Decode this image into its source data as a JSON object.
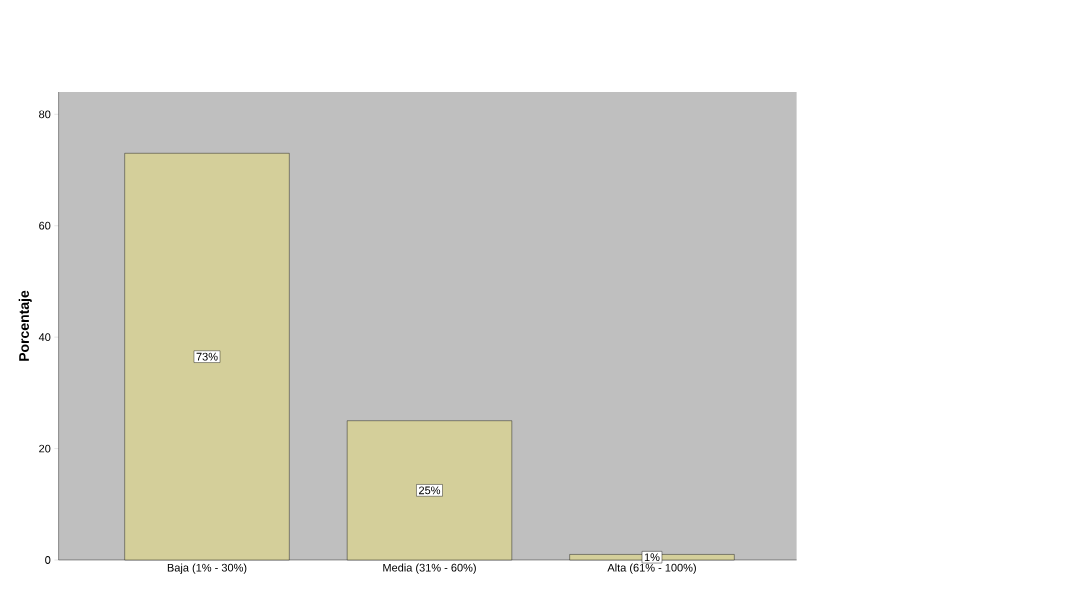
{
  "chart_data": {
    "type": "bar",
    "ylabel": "Porcentaje",
    "categories": [
      "Baja (1% - 30%)",
      "Media (31% - 60%)",
      "Alta (61% - 100%)"
    ],
    "values": [
      73,
      25,
      1
    ],
    "value_labels": [
      "73%",
      "25%",
      "1%"
    ],
    "color": "#d4cf9a",
    "ylim": [
      0,
      84
    ],
    "yticks": [
      0,
      20,
      40,
      60,
      80
    ]
  }
}
